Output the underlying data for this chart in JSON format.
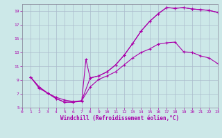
{
  "bg_color": "#cce8e8",
  "line_color": "#aa00aa",
  "grid_color": "#aabbcc",
  "xlabel": "Windchill (Refroidissement éolien,°C)",
  "xlim": [
    0,
    23
  ],
  "ylim": [
    5,
    20
  ],
  "xticks": [
    0,
    1,
    2,
    3,
    4,
    5,
    6,
    7,
    8,
    9,
    10,
    11,
    12,
    13,
    14,
    15,
    16,
    17,
    18,
    19,
    20,
    21,
    22,
    23
  ],
  "yticks": [
    5,
    7,
    9,
    11,
    13,
    15,
    17,
    19
  ],
  "curve1_x": [
    1,
    2,
    3,
    4,
    5,
    6,
    7,
    8,
    9,
    10,
    11,
    12,
    13,
    14,
    15,
    16,
    17,
    18,
    19,
    20,
    21,
    22,
    23
  ],
  "curve1_y": [
    9.4,
    8.0,
    7.1,
    6.3,
    5.8,
    5.8,
    6.0,
    9.3,
    9.6,
    10.2,
    11.2,
    12.6,
    14.3,
    16.1,
    17.5,
    18.6,
    19.5,
    19.4,
    19.5,
    19.3,
    19.2,
    19.1,
    18.8
  ],
  "curve2_x": [
    1,
    2,
    3,
    4,
    5,
    6,
    7,
    7.5,
    8,
    9,
    10,
    11,
    12,
    13,
    14,
    15,
    16,
    17,
    18,
    19,
    20,
    21,
    22,
    23
  ],
  "curve2_y": [
    9.4,
    8.0,
    7.1,
    6.3,
    5.8,
    5.8,
    5.9,
    12.0,
    9.3,
    9.6,
    10.2,
    11.2,
    12.6,
    14.3,
    16.1,
    17.5,
    18.6,
    19.5,
    19.4,
    19.5,
    19.3,
    19.2,
    19.1,
    18.8
  ],
  "curve3_x": [
    1,
    2,
    3,
    4,
    5,
    6,
    7,
    8,
    9,
    10,
    11,
    12,
    13,
    14,
    15,
    16,
    17,
    18,
    19,
    20,
    21,
    22,
    23
  ],
  "curve3_y": [
    9.4,
    7.8,
    7.1,
    6.5,
    6.1,
    5.9,
    6.0,
    8.0,
    9.1,
    9.6,
    10.2,
    11.2,
    12.2,
    13.0,
    13.5,
    14.2,
    14.4,
    14.5,
    13.1,
    13.0,
    12.5,
    12.2,
    11.4
  ]
}
